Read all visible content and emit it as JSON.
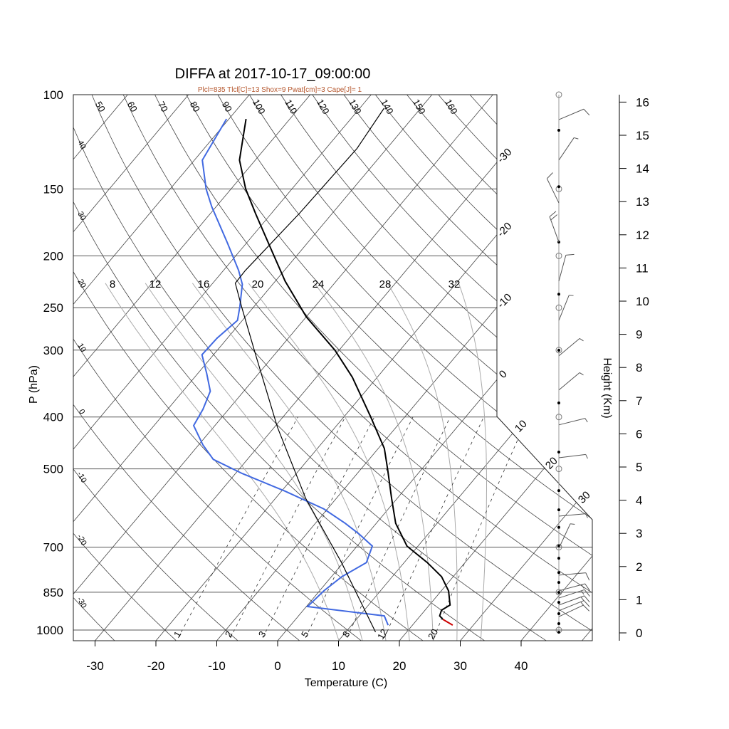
{
  "chart_data": {
    "type": "line",
    "subtype": "skew-t log-p sounding",
    "title": "DIFFA at 2017-10-17_09:00:00",
    "subtitle": "Plcl=835 Tlcl[C]=13 Shox=9 Pwat[cm]=3 Cape[J]= 1",
    "xlabel": "Temperature (C)",
    "ylabel": "P (hPa)",
    "y2label": "Height (Km)",
    "xlim": [
      -35,
      50
    ],
    "ylim_hpa": [
      1050,
      100
    ],
    "x_ticks": [
      "-30",
      "-20",
      "-10",
      "0",
      "10",
      "20",
      "30",
      "40"
    ],
    "x_tick_values": [
      -30,
      -20,
      -10,
      0,
      10,
      20,
      30,
      40
    ],
    "p_ticks": [
      "100",
      "150",
      "200",
      "250",
      "300",
      "400",
      "500",
      "700",
      "850",
      "1000"
    ],
    "p_tick_values": [
      100,
      150,
      200,
      250,
      300,
      400,
      500,
      700,
      850,
      1000
    ],
    "height_ticks": [
      "0",
      "1",
      "2",
      "3",
      "4",
      "5",
      "6",
      "7",
      "8",
      "9",
      "10",
      "11",
      "12",
      "13",
      "14",
      "15",
      "16"
    ],
    "isotherm_labels": [
      "-30",
      "-20",
      "-10",
      "0",
      "10",
      "20",
      "30"
    ],
    "dry_adiabat_left_labels": [
      "40",
      "30",
      "20",
      "10",
      "0",
      "-10",
      "-20",
      "-30"
    ],
    "dry_adiabat_top_labels": [
      "50",
      "60",
      "70",
      "80",
      "90",
      "100",
      "110",
      "120",
      "130",
      "140",
      "150",
      "160"
    ],
    "moist_adiabat_labels": [
      "8",
      "12",
      "16",
      "20",
      "24",
      "28",
      "32"
    ],
    "mixing_ratio_labels": [
      "1",
      "2",
      "3",
      "5",
      "8",
      "12",
      "20"
    ],
    "series": [
      {
        "name": "temperature",
        "color": "#000000",
        "p": [
          111,
          132.5,
          150,
          167,
          194,
          223,
          260,
          300,
          337,
          399,
          458,
          502,
          568,
          632,
          697,
          748,
          795,
          845,
          898,
          918,
          941,
          955
        ],
        "t": [
          -77.2,
          -72.6,
          -67.6,
          -62.5,
          -55.2,
          -48.4,
          -40.0,
          -30.7,
          -24.1,
          -15.7,
          -9.0,
          -5.5,
          -0.9,
          3.2,
          8.2,
          13.8,
          18.1,
          21.2,
          23.4,
          22.7,
          23.2,
          24.2
        ]
      },
      {
        "name": "temperature-surface-segment",
        "color": "#cc0000",
        "p": [
          955,
          979
        ],
        "t": [
          24.2,
          26.6
        ]
      },
      {
        "name": "dewpoint",
        "color": "#4169e1",
        "p": [
          111,
          132.5,
          150,
          162,
          189,
          213,
          226,
          249,
          264,
          285,
          306,
          332,
          358,
          387,
          415,
          451,
          480,
          510,
          550,
          594,
          632,
          662,
          697,
          748,
          795,
          845,
          904,
          941,
          979
        ],
        "t": [
          -80.4,
          -78.7,
          -74.1,
          -70.7,
          -63.2,
          -57.5,
          -55.0,
          -52.3,
          -50.8,
          -51.7,
          -51.9,
          -48.5,
          -45.5,
          -44.2,
          -43.5,
          -39.3,
          -35.6,
          -28.9,
          -19.5,
          -10.6,
          -5.1,
          -1.3,
          2.5,
          3.8,
          1.7,
          0.7,
          0.2,
          14.1,
          16.0
        ]
      },
      {
        "name": "parcel",
        "color": "#000000",
        "p": [
          1009,
          748,
          568,
          418,
          308,
          249,
          225,
          213,
          167,
          126,
          106
        ],
        "t": [
          14.9,
          -0.3,
          -15.0,
          -29.5,
          -42.8,
          -52.0,
          -56.3,
          -56.4,
          -55.4,
          -54.9,
          -56.0
        ]
      }
    ],
    "wind_barbs": [
      {
        "height_km": 15.47,
        "dir": 113,
        "speed_kt": 10
      },
      {
        "height_km": 14.25,
        "dir": 146,
        "speed_kt": 5
      },
      {
        "height_km": 12.96,
        "dir": 206,
        "speed_kt": 10
      },
      {
        "height_km": 11.78,
        "dir": 200,
        "speed_kt": 20
      },
      {
        "height_km": 10.6,
        "dir": 165,
        "speed_kt": 10
      },
      {
        "height_km": 9.42,
        "dir": 158,
        "speed_kt": 5
      },
      {
        "height_km": 8.35,
        "dir": 130,
        "speed_kt": 5
      },
      {
        "height_km": 7.32,
        "dir": 130,
        "speed_kt": 5
      },
      {
        "height_km": 6.27,
        "dir": 104,
        "speed_kt": 5
      },
      {
        "height_km": 5.28,
        "dir": 97,
        "speed_kt": 5
      },
      {
        "height_km": 3.52,
        "dir": 95,
        "speed_kt": 5
      },
      {
        "height_km": 2.55,
        "dir": 155,
        "speed_kt": 5
      },
      {
        "height_km": 1.74,
        "dir": 95,
        "speed_kt": 10
      },
      {
        "height_km": 1.27,
        "dir": 105,
        "speed_kt": 15
      },
      {
        "height_km": 1.05,
        "dir": 108,
        "speed_kt": 15
      },
      {
        "height_km": 0.84,
        "dir": 110,
        "speed_kt": 15
      },
      {
        "height_km": 0.67,
        "dir": 112,
        "speed_kt": 15
      },
      {
        "height_km": 0.49,
        "dir": 115,
        "speed_kt": 10
      }
    ],
    "wind_obs_heights_km": [
      15.15,
      13.45,
      11.78,
      10.21,
      8.52,
      6.93,
      5.45,
      4.29,
      3.71,
      3.18,
      2.62,
      2.25,
      1.82,
      1.52,
      1.22,
      0.92,
      0.58,
      0.28,
      0.02
    ],
    "pressure_level_markers_hpa": [
      100,
      150,
      200,
      250,
      300,
      400,
      500,
      700,
      850,
      1000
    ]
  }
}
